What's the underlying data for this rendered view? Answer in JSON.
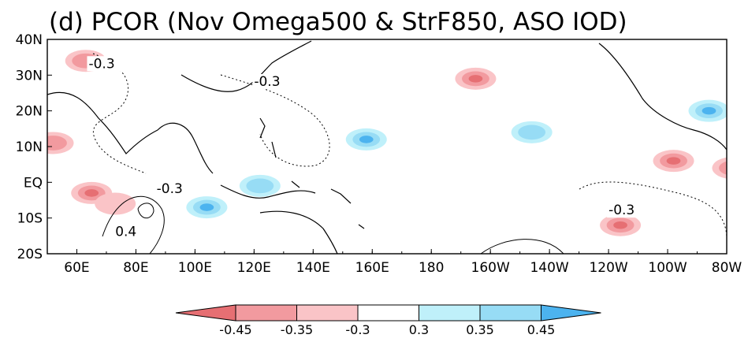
{
  "chart_data": {
    "type": "heatmap",
    "title": "(d)  PCOR (Nov Omega500 & StrF850, ASO IOD)",
    "x_ticks": [
      "60E",
      "80E",
      "100E",
      "120E",
      "140E",
      "160E",
      "180",
      "160W",
      "140W",
      "120W",
      "100W",
      "80W"
    ],
    "y_ticks": [
      "40N",
      "30N",
      "20N",
      "10N",
      "EQ",
      "10S",
      "20S"
    ],
    "x_range_lon_east": [
      50,
      280
    ],
    "y_range_lat": [
      -20,
      40
    ],
    "shading_variable": "partial correlation (shaded)",
    "contour_variable": "partial correlation (contours)",
    "colorbar": {
      "labels": [
        "-0.45",
        "-0.35",
        "-0.3",
        "0.3",
        "0.35",
        "0.45"
      ],
      "colors": [
        "#e66f73",
        "#f29a9f",
        "#fac4c7",
        "#ffffff",
        "#bff0fa",
        "#97dcf5",
        "#4cb3ef"
      ]
    },
    "contour_labels": [
      {
        "text": "-0.3",
        "lon": 64,
        "lat": 32
      },
      {
        "text": "-0.3",
        "lon": 120,
        "lat": 27
      },
      {
        "text": "-0.3",
        "lon": 87,
        "lat": -3
      },
      {
        "text": "-0.3",
        "lon": 240,
        "lat": -9
      },
      {
        "text": "0.4",
        "lon": 73,
        "lat": -15
      }
    ],
    "shaded_regions": [
      {
        "lon": 63,
        "lat": 34,
        "sign": "neg",
        "level": 2
      },
      {
        "lon": 52,
        "lat": 11,
        "sign": "neg",
        "level": 2
      },
      {
        "lon": 65,
        "lat": -3,
        "sign": "neg",
        "level": 3
      },
      {
        "lon": 73,
        "lat": -6,
        "sign": "neg",
        "level": 1
      },
      {
        "lon": 104,
        "lat": -7,
        "sign": "pos",
        "level": 3
      },
      {
        "lon": 122,
        "lat": -1,
        "sign": "pos",
        "level": 2
      },
      {
        "lon": 158,
        "lat": 12,
        "sign": "pos",
        "level": 3
      },
      {
        "lon": 195,
        "lat": 29,
        "sign": "neg",
        "level": 3
      },
      {
        "lon": 214,
        "lat": 14,
        "sign": "pos",
        "level": 2
      },
      {
        "lon": 262,
        "lat": 6,
        "sign": "neg",
        "level": 3
      },
      {
        "lon": 244,
        "lat": -12,
        "sign": "neg",
        "level": 3
      },
      {
        "lon": 274,
        "lat": 20,
        "sign": "pos",
        "level": 3
      },
      {
        "lon": 282,
        "lat": 4,
        "sign": "neg",
        "level": 2
      }
    ]
  }
}
